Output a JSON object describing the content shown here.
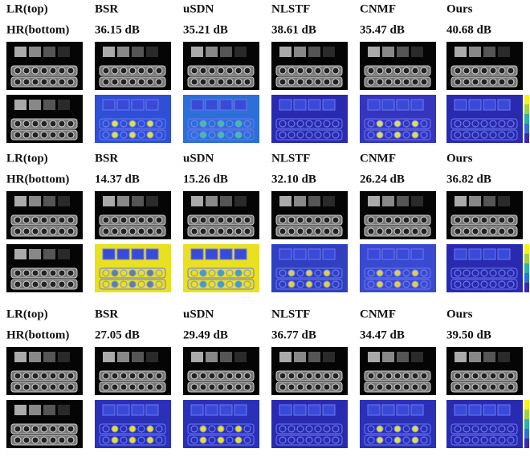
{
  "blocks": [
    {
      "methods": [
        "LR(top)",
        "BSR",
        "uSDN",
        "NLSTF",
        "CNMF",
        "Ours"
      ],
      "scores": [
        "HR(bottom)",
        "36.15 dB",
        "35.21 dB",
        "38.61 dB",
        "35.47 dB",
        "40.68 dB"
      ]
    },
    {
      "methods": [
        "LR(top)",
        "BSR",
        "uSDN",
        "NLSTF",
        "CNMF",
        "Ours"
      ],
      "scores": [
        "HR(bottom)",
        "14.37 dB",
        "15.26 dB",
        "32.10 dB",
        "26.24 dB",
        "36.82 dB"
      ]
    },
    {
      "methods": [
        "LR(top)",
        "BSR",
        "uSDN",
        "NLSTF",
        "CNMF",
        "Ours"
      ],
      "scores": [
        "HR(bottom)",
        "27.05 dB",
        "29.49 dB",
        "36.77 dB",
        "34.47 dB",
        "39.50 dB"
      ]
    }
  ]
}
